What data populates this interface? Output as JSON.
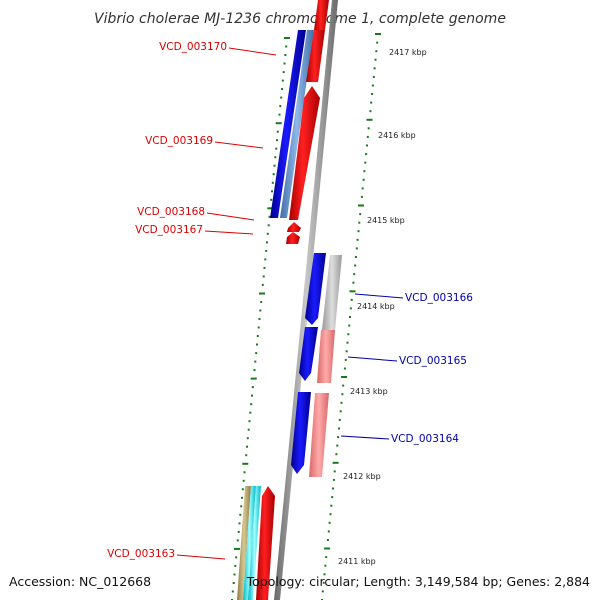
{
  "title": "Vibrio cholerae MJ-1236 chromosome 1, complete genome",
  "footer": {
    "accession": "Accession: NC_012668",
    "topology": "Topology: circular; Length: 3,149,584 bp; Genes: 2,884"
  },
  "colors": {
    "forward_gene": "#0000ee",
    "reverse_gene": "#ff0000",
    "forward_label": "#0000aa",
    "reverse_label": "#dd0000",
    "tick": "#1a7a1a",
    "backbone": "#888888"
  },
  "tick_labels": [
    "2417 kbp",
    "2416 kbp",
    "2415 kbp",
    "2414 kbp",
    "2413 kbp",
    "2412 kbp",
    "2411 kbp"
  ],
  "gene_labels": [
    {
      "text": "VCD_003170",
      "strand": "reverse"
    },
    {
      "text": "VCD_003169",
      "strand": "reverse"
    },
    {
      "text": "VCD_003168",
      "strand": "reverse"
    },
    {
      "text": "VCD_003167",
      "strand": "reverse"
    },
    {
      "text": "VCD_003166",
      "strand": "forward"
    },
    {
      "text": "VCD_003165",
      "strand": "forward"
    },
    {
      "text": "VCD_003164",
      "strand": "forward"
    },
    {
      "text": "VCD_003163",
      "strand": "reverse"
    }
  ]
}
